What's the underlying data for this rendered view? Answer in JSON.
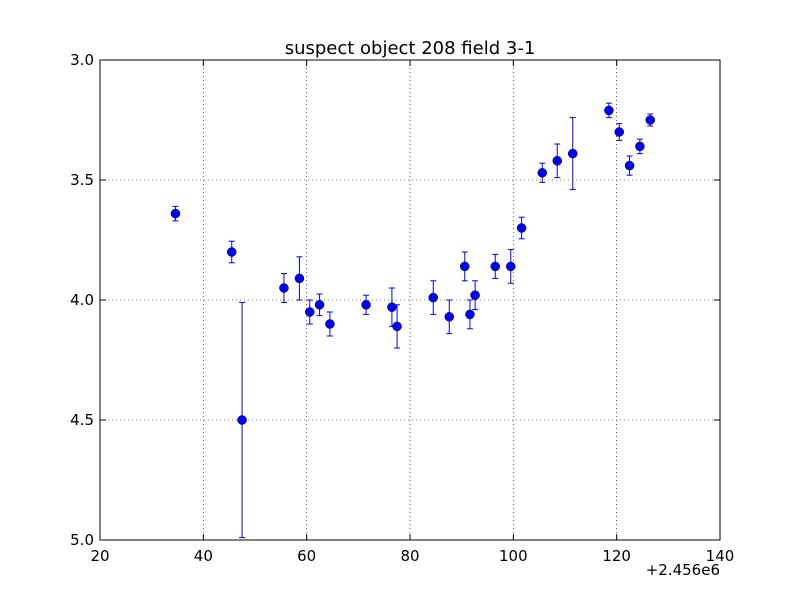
{
  "chart_data": {
    "type": "scatter",
    "title": "suspect object 208 field 3-1",
    "xlabel": "",
    "ylabel": "",
    "x_offset_label": "+2.456e6",
    "xlim": [
      20,
      140
    ],
    "ylim": [
      3.0,
      5.0
    ],
    "y_inverted": true,
    "grid": true,
    "x_ticks": [
      "20",
      "40",
      "60",
      "80",
      "100",
      "120",
      "140"
    ],
    "y_ticks": [
      "3.0",
      "3.5",
      "4.0",
      "4.5",
      "5.0"
    ],
    "marker_color": "#0000ff",
    "series": [
      {
        "points": [
          {
            "x": 34.6,
            "y": 3.64,
            "err": 0.03
          },
          {
            "x": 45.5,
            "y": 3.8,
            "err": 0.045
          },
          {
            "x": 47.5,
            "y": 4.5,
            "err": 0.49
          },
          {
            "x": 55.6,
            "y": 3.95,
            "err": 0.06
          },
          {
            "x": 58.6,
            "y": 3.91,
            "err": 0.09
          },
          {
            "x": 60.6,
            "y": 4.05,
            "err": 0.05
          },
          {
            "x": 62.5,
            "y": 4.02,
            "err": 0.045
          },
          {
            "x": 64.5,
            "y": 4.1,
            "err": 0.05
          },
          {
            "x": 71.5,
            "y": 4.02,
            "err": 0.04
          },
          {
            "x": 76.5,
            "y": 4.03,
            "err": 0.08
          },
          {
            "x": 77.5,
            "y": 4.11,
            "err": 0.09
          },
          {
            "x": 84.5,
            "y": 3.99,
            "err": 0.07
          },
          {
            "x": 87.6,
            "y": 4.07,
            "err": 0.07
          },
          {
            "x": 90.6,
            "y": 3.86,
            "err": 0.06
          },
          {
            "x": 91.6,
            "y": 4.06,
            "err": 0.06
          },
          {
            "x": 92.6,
            "y": 3.98,
            "err": 0.06
          },
          {
            "x": 96.5,
            "y": 3.86,
            "err": 0.05
          },
          {
            "x": 99.5,
            "y": 3.86,
            "err": 0.07
          },
          {
            "x": 101.6,
            "y": 3.7,
            "err": 0.045
          },
          {
            "x": 105.6,
            "y": 3.47,
            "err": 0.04
          },
          {
            "x": 108.5,
            "y": 3.42,
            "err": 0.07
          },
          {
            "x": 111.5,
            "y": 3.39,
            "err": 0.15
          },
          {
            "x": 118.5,
            "y": 3.21,
            "err": 0.03
          },
          {
            "x": 120.5,
            "y": 3.3,
            "err": 0.035
          },
          {
            "x": 122.5,
            "y": 3.44,
            "err": 0.04
          },
          {
            "x": 124.5,
            "y": 3.36,
            "err": 0.03
          },
          {
            "x": 126.5,
            "y": 3.25,
            "err": 0.025
          }
        ]
      }
    ]
  }
}
